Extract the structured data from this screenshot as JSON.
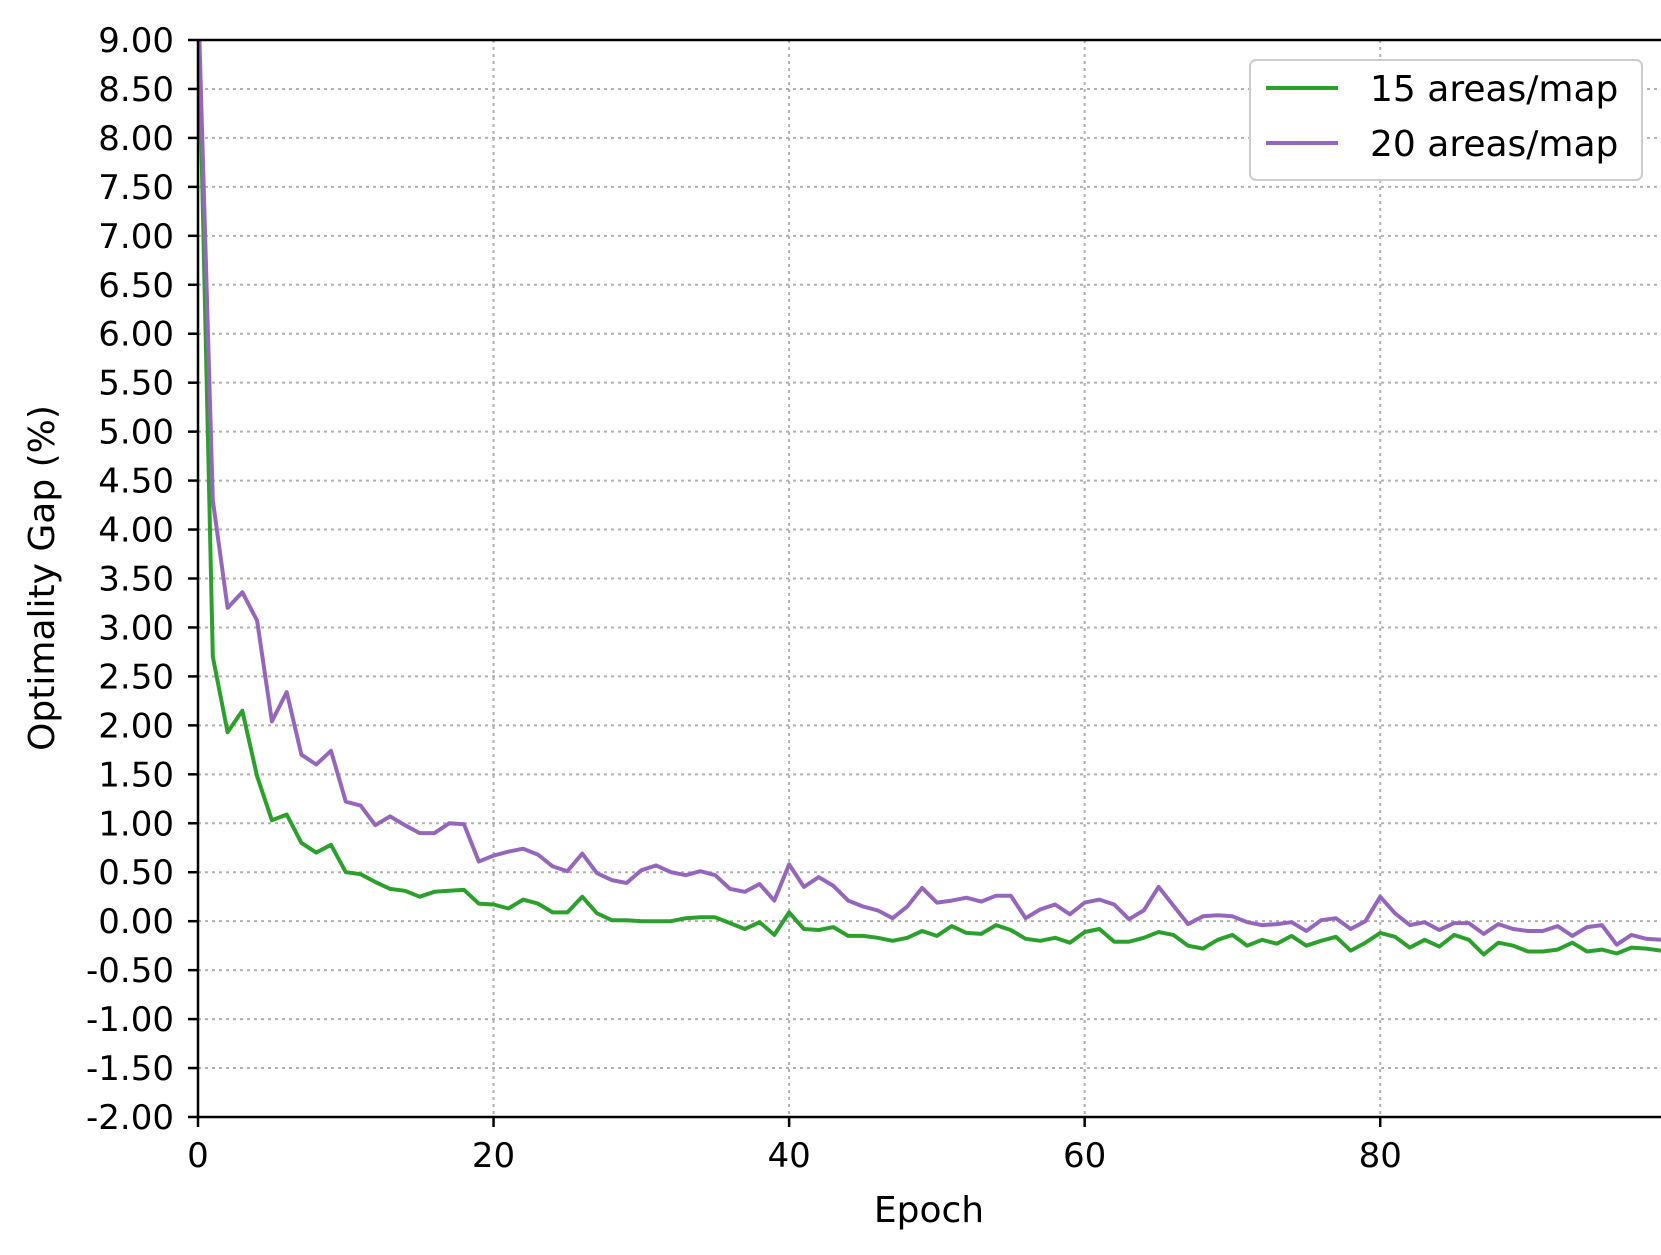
{
  "chart_data": {
    "type": "line",
    "xlabel": "Epoch",
    "ylabel": "Optimality Gap (%)",
    "xlim": [
      0,
      99
    ],
    "ylim": [
      -2.0,
      9.0
    ],
    "xticks": [
      0,
      20,
      40,
      60,
      80
    ],
    "xtick_labels": [
      "0",
      "20",
      "40",
      "60",
      "80"
    ],
    "yticks": [
      -2.0,
      -1.5,
      -1.0,
      -0.5,
      0.0,
      0.5,
      1.0,
      1.5,
      2.0,
      2.5,
      3.0,
      3.5,
      4.0,
      4.5,
      5.0,
      5.5,
      6.0,
      6.5,
      7.0,
      7.5,
      8.0,
      8.5,
      9.0
    ],
    "ytick_labels": [
      "-2.00",
      "-1.50",
      "-1.00",
      "-0.50",
      "0.00",
      "0.50",
      "1.00",
      "1.50",
      "2.00",
      "2.50",
      "3.00",
      "3.50",
      "4.00",
      "4.50",
      "5.00",
      "5.50",
      "6.00",
      "6.50",
      "7.00",
      "7.50",
      "8.00",
      "8.50",
      "9.00"
    ],
    "grid": true,
    "legend_position": "top-right",
    "series": [
      {
        "name": "15 areas/map",
        "color": "#2ca02c",
        "x": [
          0,
          1,
          2,
          3,
          4,
          5,
          6,
          7,
          8,
          9,
          10,
          11,
          12,
          13,
          14,
          15,
          16,
          17,
          18,
          19,
          20,
          21,
          22,
          23,
          24,
          25,
          26,
          27,
          28,
          29,
          30,
          31,
          32,
          33,
          34,
          35,
          36,
          37,
          38,
          39,
          40,
          41,
          42,
          43,
          44,
          45,
          46,
          47,
          48,
          49,
          50,
          51,
          52,
          53,
          54,
          55,
          56,
          57,
          58,
          59,
          60,
          61,
          62,
          63,
          64,
          65,
          66,
          67,
          68,
          69,
          70,
          71,
          72,
          73,
          74,
          75,
          76,
          77,
          78,
          79,
          80,
          81,
          82,
          83,
          84,
          85,
          86,
          87,
          88,
          89,
          90,
          91,
          92,
          93,
          94,
          95,
          96,
          97,
          98,
          99
        ],
        "values": [
          9.5,
          2.7,
          1.93,
          2.15,
          1.48,
          1.03,
          1.09,
          0.8,
          0.7,
          0.78,
          0.5,
          0.48,
          0.4,
          0.33,
          0.31,
          0.25,
          0.3,
          0.31,
          0.32,
          0.18,
          0.17,
          0.13,
          0.22,
          0.18,
          0.09,
          0.09,
          0.25,
          0.08,
          0.01,
          0.01,
          0.0,
          0.0,
          0.0,
          0.03,
          0.04,
          0.04,
          -0.02,
          -0.08,
          -0.01,
          -0.14,
          0.09,
          -0.08,
          -0.09,
          -0.06,
          -0.15,
          -0.15,
          -0.17,
          -0.2,
          -0.17,
          -0.1,
          -0.15,
          -0.05,
          -0.12,
          -0.13,
          -0.04,
          -0.09,
          -0.18,
          -0.2,
          -0.17,
          -0.22,
          -0.11,
          -0.08,
          -0.21,
          -0.21,
          -0.17,
          -0.11,
          -0.14,
          -0.25,
          -0.28,
          -0.19,
          -0.14,
          -0.25,
          -0.19,
          -0.23,
          -0.15,
          -0.25,
          -0.2,
          -0.16,
          -0.3,
          -0.22,
          -0.12,
          -0.16,
          -0.27,
          -0.19,
          -0.26,
          -0.14,
          -0.19,
          -0.34,
          -0.22,
          -0.25,
          -0.31,
          -0.31,
          -0.29,
          -0.22,
          -0.31,
          -0.29,
          -0.33,
          -0.27,
          -0.28,
          -0.3
        ]
      },
      {
        "name": "20 areas/map",
        "color": "#9467bd",
        "x": [
          0,
          1,
          2,
          3,
          4,
          5,
          6,
          7,
          8,
          9,
          10,
          11,
          12,
          13,
          14,
          15,
          16,
          17,
          18,
          19,
          20,
          21,
          22,
          23,
          24,
          25,
          26,
          27,
          28,
          29,
          30,
          31,
          32,
          33,
          34,
          35,
          36,
          37,
          38,
          39,
          40,
          41,
          42,
          43,
          44,
          45,
          46,
          47,
          48,
          49,
          50,
          51,
          52,
          53,
          54,
          55,
          56,
          57,
          58,
          59,
          60,
          61,
          62,
          63,
          64,
          65,
          66,
          67,
          68,
          69,
          70,
          71,
          72,
          73,
          74,
          75,
          76,
          77,
          78,
          79,
          80,
          81,
          82,
          83,
          84,
          85,
          86,
          87,
          88,
          89,
          90,
          91,
          92,
          93,
          94,
          95,
          96,
          97,
          98,
          99
        ],
        "values": [
          9.5,
          4.3,
          3.2,
          3.36,
          3.07,
          2.04,
          2.34,
          1.7,
          1.6,
          1.74,
          1.22,
          1.18,
          0.98,
          1.07,
          0.98,
          0.9,
          0.9,
          1.0,
          0.99,
          0.61,
          0.67,
          0.71,
          0.74,
          0.68,
          0.56,
          0.51,
          0.69,
          0.49,
          0.42,
          0.39,
          0.52,
          0.57,
          0.5,
          0.47,
          0.51,
          0.47,
          0.33,
          0.3,
          0.38,
          0.21,
          0.58,
          0.35,
          0.45,
          0.36,
          0.21,
          0.15,
          0.11,
          0.03,
          0.15,
          0.34,
          0.19,
          0.21,
          0.24,
          0.2,
          0.26,
          0.26,
          0.03,
          0.12,
          0.17,
          0.07,
          0.19,
          0.22,
          0.17,
          0.02,
          0.11,
          0.35,
          0.16,
          -0.03,
          0.05,
          0.06,
          0.05,
          -0.01,
          -0.04,
          -0.03,
          -0.01,
          -0.1,
          0.01,
          0.03,
          -0.08,
          0.0,
          0.25,
          0.08,
          -0.04,
          -0.01,
          -0.09,
          -0.02,
          -0.02,
          -0.13,
          -0.03,
          -0.08,
          -0.1,
          -0.1,
          -0.05,
          -0.15,
          -0.06,
          -0.04,
          -0.24,
          -0.14,
          -0.18,
          -0.19
        ]
      }
    ]
  }
}
